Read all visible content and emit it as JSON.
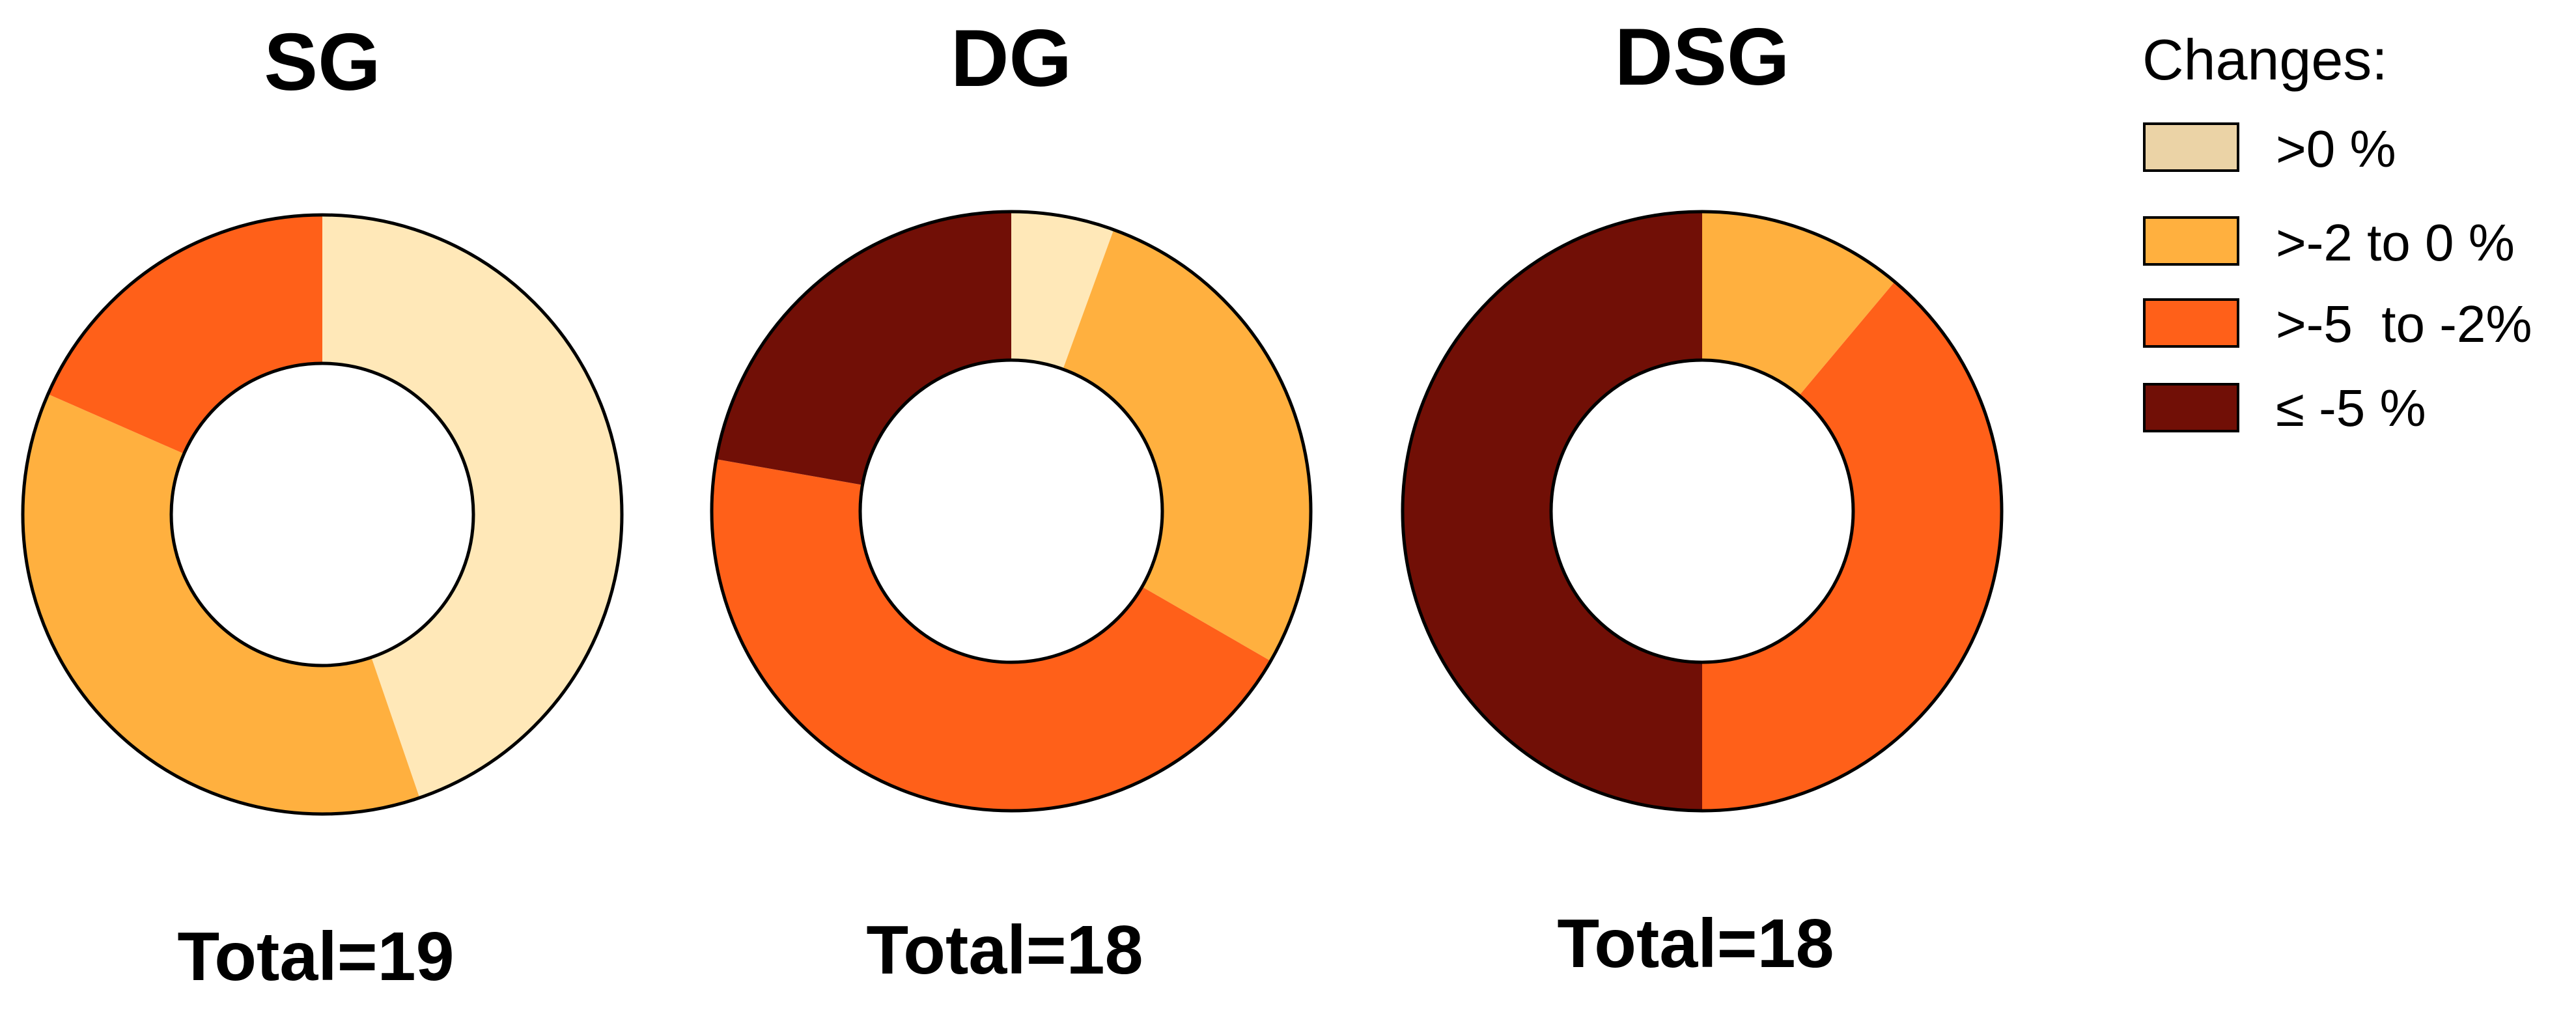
{
  "chart_data": [
    {
      "type": "pie",
      "variant": "donut",
      "title": "SG",
      "total_label": "Total=19",
      "total": 19,
      "slices": [
        {
          "category": ">0 %",
          "value": 8.5,
          "color": "#FFE8B8"
        },
        {
          "category": ">-2 to 0 %",
          "value": 7,
          "color": "#FFB03F"
        },
        {
          "category": ">-5  to -2%",
          "value": 3.5,
          "color": "#FF6019"
        },
        {
          "category": "≤ -5 %",
          "value": 0,
          "color": "#710F06"
        }
      ]
    },
    {
      "type": "pie",
      "variant": "donut",
      "title": "DG",
      "total_label": "Total=18",
      "total": 18,
      "slices": [
        {
          "category": ">0 %",
          "value": 1,
          "color": "#FFE8B8"
        },
        {
          "category": ">-2 to 0 %",
          "value": 5,
          "color": "#FFB03F"
        },
        {
          "category": ">-5  to -2%",
          "value": 8,
          "color": "#FF6019"
        },
        {
          "category": "≤ -5 %",
          "value": 4,
          "color": "#710F06"
        }
      ]
    },
    {
      "type": "pie",
      "variant": "donut",
      "title": "DSG",
      "total_label": "Total=18",
      "total": 18,
      "slices": [
        {
          "category": ">0 %",
          "value": 0,
          "color": "#FFE8B8"
        },
        {
          "category": ">-2 to 0 %",
          "value": 2,
          "color": "#FFB03F"
        },
        {
          "category": ">-5  to -2%",
          "value": 7,
          "color": "#FF6019"
        },
        {
          "category": "≤ -5 %",
          "value": 9,
          "color": "#710F06"
        }
      ]
    }
  ],
  "legend": {
    "title": "Changes:",
    "placement": "top-right",
    "items": [
      {
        "label": ">0 %",
        "color": "#EBD3A6"
      },
      {
        "label": ">-2 to 0 %",
        "color": "#FFB03F"
      },
      {
        "label": ">-5  to -2%",
        "color": "#FF6019"
      },
      {
        "label": "≤ -5 %",
        "color": "#710F06"
      }
    ]
  }
}
